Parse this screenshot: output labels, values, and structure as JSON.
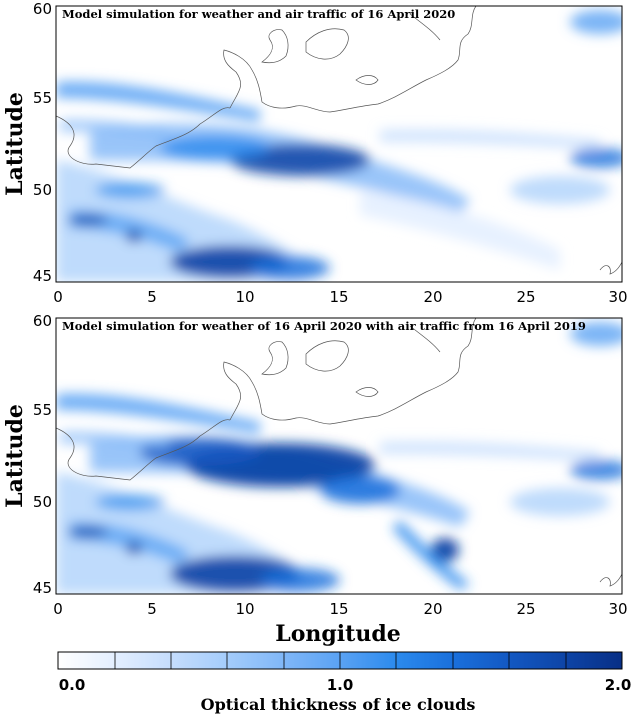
{
  "panels": [
    {
      "title": "Model simulation for weather and air traffic of 16 April 2020",
      "x_ticks": [
        "0",
        "5",
        "10",
        "15",
        "20",
        "25",
        "30"
      ],
      "y_ticks": [
        "60",
        "55",
        "50",
        "45"
      ],
      "ylabel": "Latitude"
    },
    {
      "title": "Model simulation for weather of 16 April 2020 with air traffic from 16 April 2019",
      "x_ticks": [
        "0",
        "5",
        "10",
        "15",
        "20",
        "25",
        "30"
      ],
      "y_ticks": [
        "60",
        "55",
        "50",
        "45"
      ],
      "ylabel": "Latitude"
    }
  ],
  "xlabel": "Longitude",
  "colorbar": {
    "label": "Optical thickness of ice clouds",
    "min_label": "0.0",
    "mid_label": "1.0",
    "max_label": "2.0",
    "colors": [
      "#ffffff",
      "#e4efff",
      "#c5ddfd",
      "#a4ccfb",
      "#80b7f8",
      "#5aa2f4",
      "#2b8aed",
      "#1a70dc",
      "#1358c2",
      "#0d44a6",
      "#082f86"
    ]
  }
}
